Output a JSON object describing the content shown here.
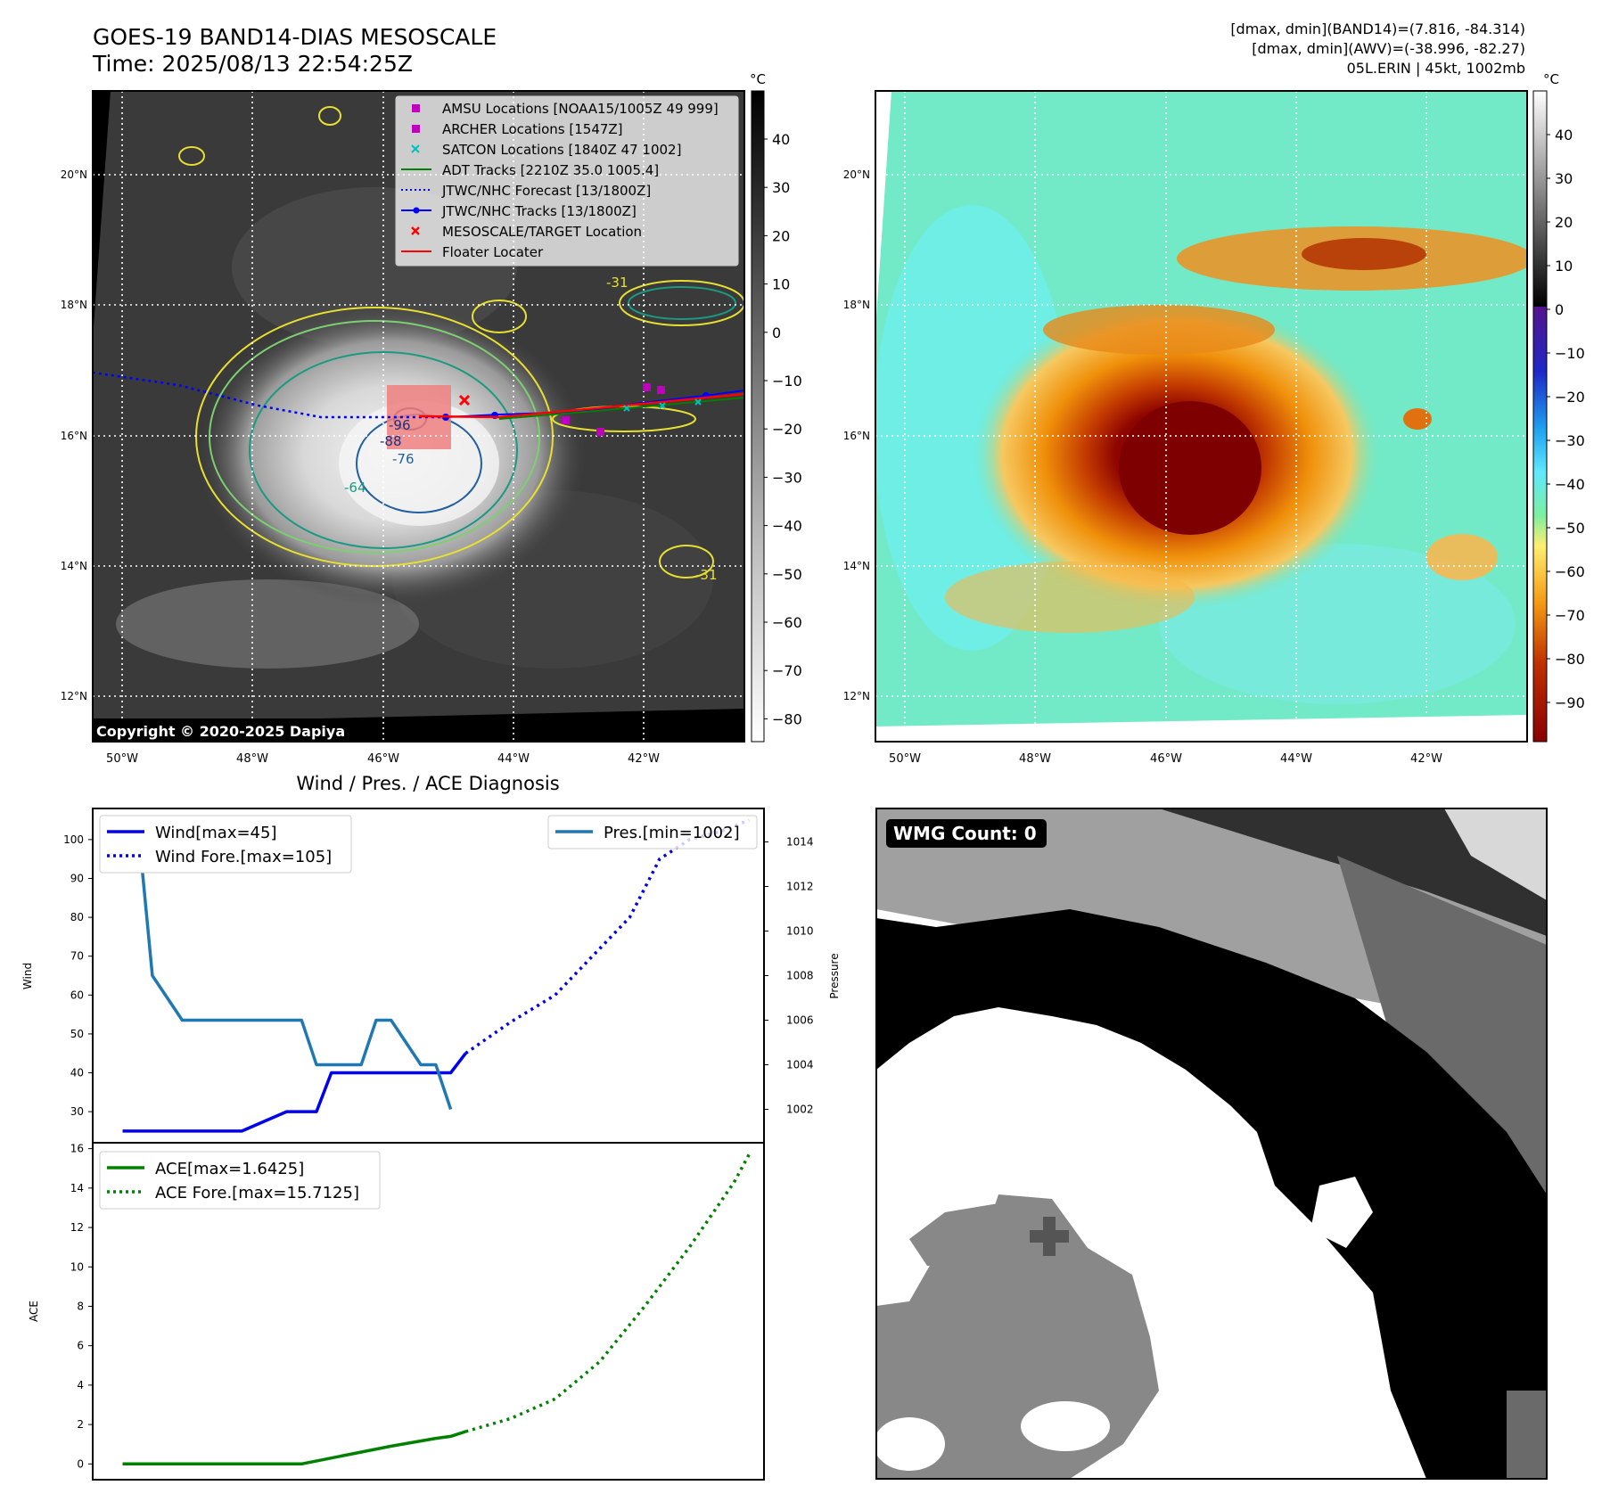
{
  "header": {
    "title": "GOES-19 BAND14-DIAS MESOSCALE",
    "time": "Time: 2025/08/13 22:54:25Z",
    "stats_line1": "[dmax, dmin](BAND14)=(7.816, -84.314)",
    "stats_line2": "[dmax, dmin](AWV)=(-38.996, -82.27)",
    "storm_line": "05L.ERIN | 45kt, 1002mb"
  },
  "copyright": "Copyright © 2020-2025 Dapiya",
  "map_axes": {
    "lat_labels": [
      "20°N",
      "18°N",
      "16°N",
      "14°N",
      "12°N"
    ],
    "lon_labels": [
      "50°W",
      "48°W",
      "46°W",
      "44°W",
      "42°W"
    ]
  },
  "colorbar_left": {
    "unit": "°C",
    "ticks": [
      "40",
      "30",
      "20",
      "10",
      "0",
      "−10",
      "−20",
      "−30",
      "−40",
      "−50",
      "−60",
      "−70",
      "−80"
    ]
  },
  "colorbar_right": {
    "unit": "°C",
    "ticks": [
      "40",
      "30",
      "20",
      "10",
      "0",
      "−10",
      "−20",
      "−30",
      "−40",
      "−50",
      "−60",
      "−70",
      "−80",
      "−90"
    ]
  },
  "map_legend": [
    {
      "label": "AMSU Locations [NOAA15/1005Z 49 999]",
      "kind": "square",
      "color": "#bf00bf"
    },
    {
      "label": "ARCHER Locations [1547Z]",
      "kind": "square",
      "color": "#bf00bf"
    },
    {
      "label": "SATCON Locations [1840Z 47 1002]",
      "kind": "xmark",
      "color": "#00bfbf"
    },
    {
      "label": "ADT Tracks [2210Z 35.0 1005.4]",
      "kind": "line",
      "color": "#008000"
    },
    {
      "label": "JTWC/NHC Forecast [13/1800Z]",
      "kind": "dotted",
      "color": "#0000ff"
    },
    {
      "label": "JTWC/NHC Tracks [13/1800Z]",
      "kind": "linedot",
      "color": "#0000ff"
    },
    {
      "label": "MESOSCALE/TARGET Location",
      "kind": "xmark",
      "color": "#ff0000"
    },
    {
      "label": "Floater Locater",
      "kind": "line",
      "color": "#ff0000"
    }
  ],
  "contour_labels": [
    "-31",
    "-31",
    "-64",
    "-76",
    "-96",
    "-88"
  ],
  "wmg": {
    "label": "WMG Count: 0"
  },
  "chart_data": [
    {
      "type": "line",
      "title": "Wind / Pres. / ACE Diagnosis",
      "ylabel": "Wind",
      "ylabel_right": "Pressure",
      "ylim": [
        22,
        108
      ],
      "ylim_right": [
        1000.5,
        1015.5
      ],
      "yticks": [
        30,
        40,
        50,
        60,
        70,
        80,
        90,
        100
      ],
      "yticks_right": [
        1002,
        1004,
        1006,
        1008,
        1010,
        1012,
        1014
      ],
      "xlim": [
        0,
        22.5
      ],
      "legend_left": [
        "Wind[max=45]",
        "Wind Fore.[max=105]"
      ],
      "legend_right": [
        "Pres.[min=1002]"
      ],
      "series": [
        {
          "name": "Wind[max=45]",
          "axis": "left",
          "color": "#0000ee",
          "dash": "solid",
          "x": [
            1,
            4.5,
            5,
            6.5,
            7,
            7.5,
            8,
            11.5,
            12,
            12.5
          ],
          "values": [
            25,
            25,
            25,
            30,
            30,
            30,
            40,
            40,
            40,
            45
          ]
        },
        {
          "name": "Wind Fore.[max=105]",
          "axis": "left",
          "color": "#0000ee",
          "dash": "dotted",
          "x": [
            12.5,
            14,
            15.5,
            18,
            19,
            20,
            21,
            22
          ],
          "values": [
            45,
            53,
            60,
            80,
            95,
            100,
            102,
            105
          ]
        },
        {
          "name": "Pres.[min=1002]",
          "axis": "right",
          "color": "#1f77b4",
          "dash": "solid",
          "x": [
            1,
            1.5,
            2,
            3,
            5,
            6,
            7,
            7.5,
            8,
            9,
            9.5,
            10,
            11,
            11.5,
            12
          ],
          "values": [
            1015,
            1015,
            1008,
            1006,
            1006,
            1006,
            1006,
            1004,
            1004,
            1004,
            1006,
            1006,
            1004,
            1004,
            1002
          ]
        }
      ]
    },
    {
      "type": "line",
      "ylabel": "ACE",
      "ylim": [
        -0.8,
        16.3
      ],
      "yticks": [
        0,
        2,
        4,
        6,
        8,
        10,
        12,
        14,
        16
      ],
      "xlim": [
        0,
        22.5
      ],
      "legend": [
        "ACE[max=1.6425]",
        "ACE Fore.[max=15.7125]"
      ],
      "series": [
        {
          "name": "ACE[max=1.6425]",
          "color": "#008000",
          "dash": "solid",
          "x": [
            1,
            2,
            4,
            5.5,
            7,
            10,
            11.5,
            12,
            12.5
          ],
          "values": [
            0,
            0,
            0,
            0,
            0,
            0.9,
            1.3,
            1.4,
            1.6425
          ]
        },
        {
          "name": "ACE Fore.[max=15.7125]",
          "color": "#008000",
          "dash": "dotted",
          "x": [
            12.5,
            14,
            15.5,
            17,
            18.5,
            20,
            21.5,
            22
          ],
          "values": [
            1.6425,
            2.3,
            3.3,
            5.2,
            8.0,
            11.0,
            14.3,
            15.7125
          ]
        }
      ]
    }
  ]
}
